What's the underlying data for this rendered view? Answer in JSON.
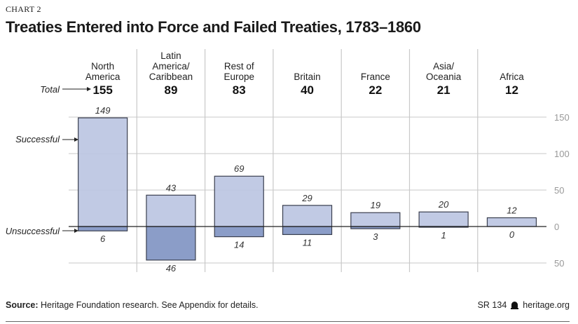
{
  "header": {
    "chart_label": "CHART 2",
    "title": "Treaties Entered into Force and Failed Treaties, 1783–1860"
  },
  "annotations": {
    "total": "Total",
    "successful": "Successful",
    "unsuccessful": "Unsuccessful"
  },
  "footer": {
    "source_label": "Source:",
    "source_text": " Heritage Foundation research. See Appendix for details.",
    "report_id": "SR 134",
    "logo_icon": "liberty-bell-icon",
    "site": "heritage.org"
  },
  "colors": {
    "successful": "#BCC6E2",
    "unsuccessful": "#8598C5",
    "bar_outline": "#3a3f4f",
    "grid": "#c8c8c8",
    "zero_line": "#222222"
  },
  "chart_data": {
    "type": "bar",
    "title": "Treaties Entered into Force and Failed Treaties, 1783–1860",
    "xlabel": "",
    "ylabel": "",
    "categories": [
      [
        "North",
        "America"
      ],
      [
        "Latin",
        "America/",
        "Caribbean"
      ],
      [
        "Rest of",
        "Europe"
      ],
      [
        "Britain"
      ],
      [
        "France"
      ],
      [
        "Asia/",
        "Oceania"
      ],
      [
        "Africa"
      ]
    ],
    "totals": [
      155,
      89,
      83,
      40,
      22,
      21,
      12
    ],
    "series": [
      {
        "name": "Successful",
        "values": [
          149,
          43,
          69,
          29,
          19,
          20,
          12
        ]
      },
      {
        "name": "Unsuccessful",
        "values": [
          6,
          46,
          14,
          11,
          3,
          1,
          0
        ]
      }
    ],
    "ylim": [
      -50,
      150
    ],
    "yticks": [
      150,
      100,
      50,
      0,
      -50
    ],
    "ytick_labels": [
      "150",
      "100",
      "50",
      "0",
      "50"
    ],
    "grid": true,
    "axis_position": "right"
  }
}
